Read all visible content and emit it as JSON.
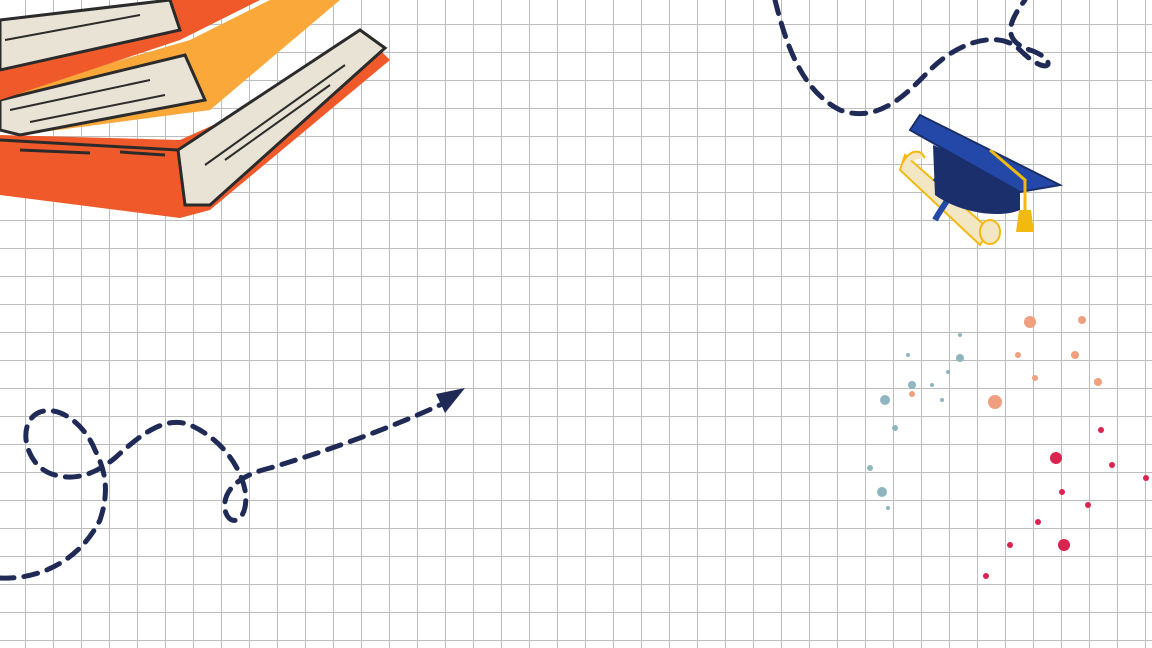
{
  "colors": {
    "background": "#ffffff",
    "grid_line": "#bdbdbd",
    "book_orange": "#f05a2a",
    "book_yellow": "#fba83a",
    "book_pages": "#e9e3d6",
    "book_outline": "#2b2b2b",
    "dashed_path": "#1f2a56",
    "cap_blue": "#2348a8",
    "cap_dark": "#1a2f6b",
    "tassel_gold": "#f2b90f",
    "diploma_cream": "#f3e6c2",
    "splatter_teal": "#8fb5bf",
    "splatter_peach": "#f0a07f",
    "splatter_red": "#d9244f"
  },
  "illustrations": {
    "books": "stacked-books-illustration",
    "cap": "graduation-cap-with-diploma-illustration",
    "left_path": "dashed-arrow-path",
    "top_path": "dashed-loop-path",
    "splatter": "paint-splatter-dots"
  }
}
